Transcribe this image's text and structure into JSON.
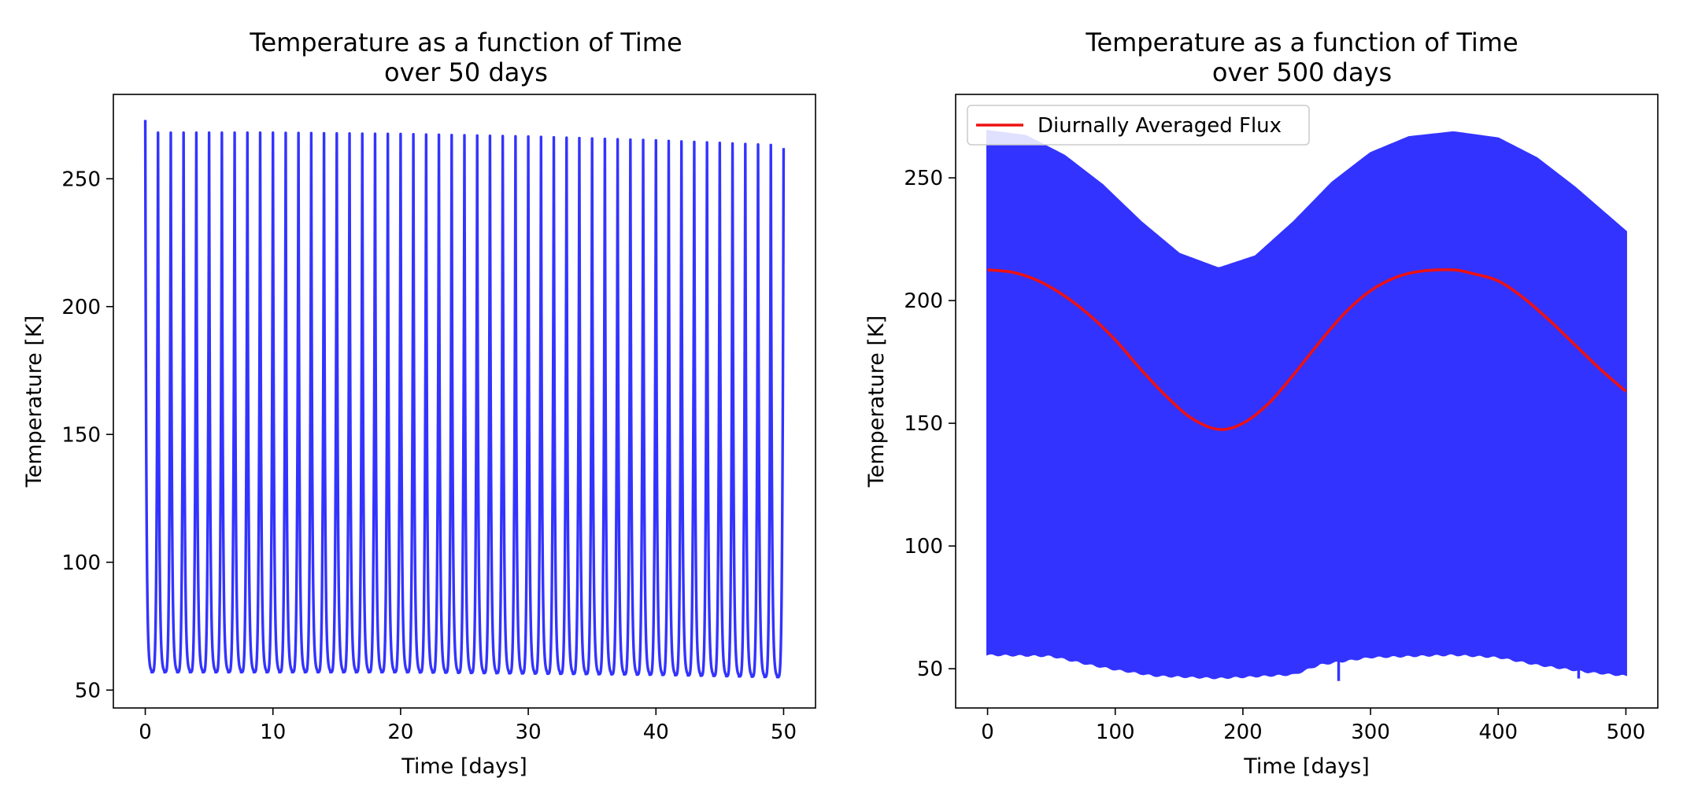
{
  "colors": {
    "temperature_line": "#3333ff",
    "averaged_line": "#ee1111",
    "axes": "#000000",
    "background": "#ffffff"
  },
  "chart_data": [
    {
      "type": "line",
      "title_line1": "Temperature as a function of Time",
      "title_line2": "over 50 days",
      "xlabel": "Time [days]",
      "ylabel": "Temperature [K]",
      "xlim": [
        -2.5,
        52.5
      ],
      "ylim": [
        43,
        283
      ],
      "xticks": [
        0,
        10,
        20,
        30,
        40,
        50
      ],
      "yticks": [
        50,
        100,
        150,
        200,
        250
      ],
      "grid": false,
      "series": [
        {
          "color": "#3333ff",
          "pattern": "diurnal-cycle",
          "days": 50,
          "start": 273,
          "peak_at_day": [
            [
              0,
              268
            ],
            [
              10,
              268
            ],
            [
              20,
              267.5
            ],
            [
              30,
              266.5
            ],
            [
              40,
              265
            ],
            [
              50,
              263
            ]
          ],
          "trough_at_day": [
            [
              0,
              57
            ],
            [
              10,
              57
            ],
            [
              20,
              57
            ],
            [
              30,
              56.5
            ],
            [
              40,
              56
            ],
            [
              50,
              55
            ]
          ],
          "end": 262
        }
      ]
    },
    {
      "type": "line",
      "title_line1": "Temperature as a function of Time",
      "title_line2": "over 500 days",
      "xlabel": "Time [days]",
      "ylabel": "Temperature [K]",
      "xlim": [
        -25,
        525
      ],
      "ylim": [
        34,
        284
      ],
      "xticks": [
        0,
        100,
        200,
        300,
        400,
        500
      ],
      "yticks": [
        50,
        100,
        150,
        200,
        250
      ],
      "grid": false,
      "legend": {
        "location": "upper-left",
        "entries": [
          "Diurnally Averaged Flux"
        ]
      },
      "series": [
        {
          "color": "#3333ff",
          "pattern": "diurnal-cycle-filled",
          "upper_envelope": [
            [
              0,
              269
            ],
            [
              30,
              267
            ],
            [
              60,
              259
            ],
            [
              90,
              247
            ],
            [
              120,
              232
            ],
            [
              150,
              219
            ],
            [
              181,
              213
            ],
            [
              210,
              218
            ],
            [
              240,
              232
            ],
            [
              270,
              248
            ],
            [
              300,
              260
            ],
            [
              330,
              266.5
            ],
            [
              365,
              268.5
            ],
            [
              400,
              266
            ],
            [
              430,
              258
            ],
            [
              460,
              246
            ],
            [
              500,
              228
            ]
          ],
          "lower_envelope": [
            [
              0,
              56
            ],
            [
              50,
              55.5
            ],
            [
              80,
              52
            ],
            [
              100,
              50
            ],
            [
              130,
              47.5
            ],
            [
              181,
              46.5
            ],
            [
              240,
              48
            ],
            [
              260,
              52
            ],
            [
              300,
              55
            ],
            [
              365,
              56
            ],
            [
              400,
              55
            ],
            [
              430,
              52
            ],
            [
              470,
              49
            ],
            [
              500,
              47.5
            ]
          ],
          "dips": [
            [
              275,
              45
            ],
            [
              463,
              46
            ]
          ]
        },
        {
          "name": "Diurnally Averaged Flux",
          "color": "#ee1111",
          "x": [
            0,
            20,
            40,
            60,
            80,
            100,
            120,
            140,
            160,
            181,
            200,
            220,
            240,
            260,
            280,
            300,
            320,
            340,
            365,
            380,
            400,
            420,
            440,
            460,
            480,
            500
          ],
          "y": [
            212.5,
            211.5,
            208,
            202,
            194,
            184,
            172,
            161,
            152,
            147.5,
            150,
            158,
            170,
            183,
            195,
            204,
            209.5,
            212,
            212.5,
            211,
            208,
            201,
            192,
            182,
            172,
            163
          ]
        }
      ]
    }
  ]
}
